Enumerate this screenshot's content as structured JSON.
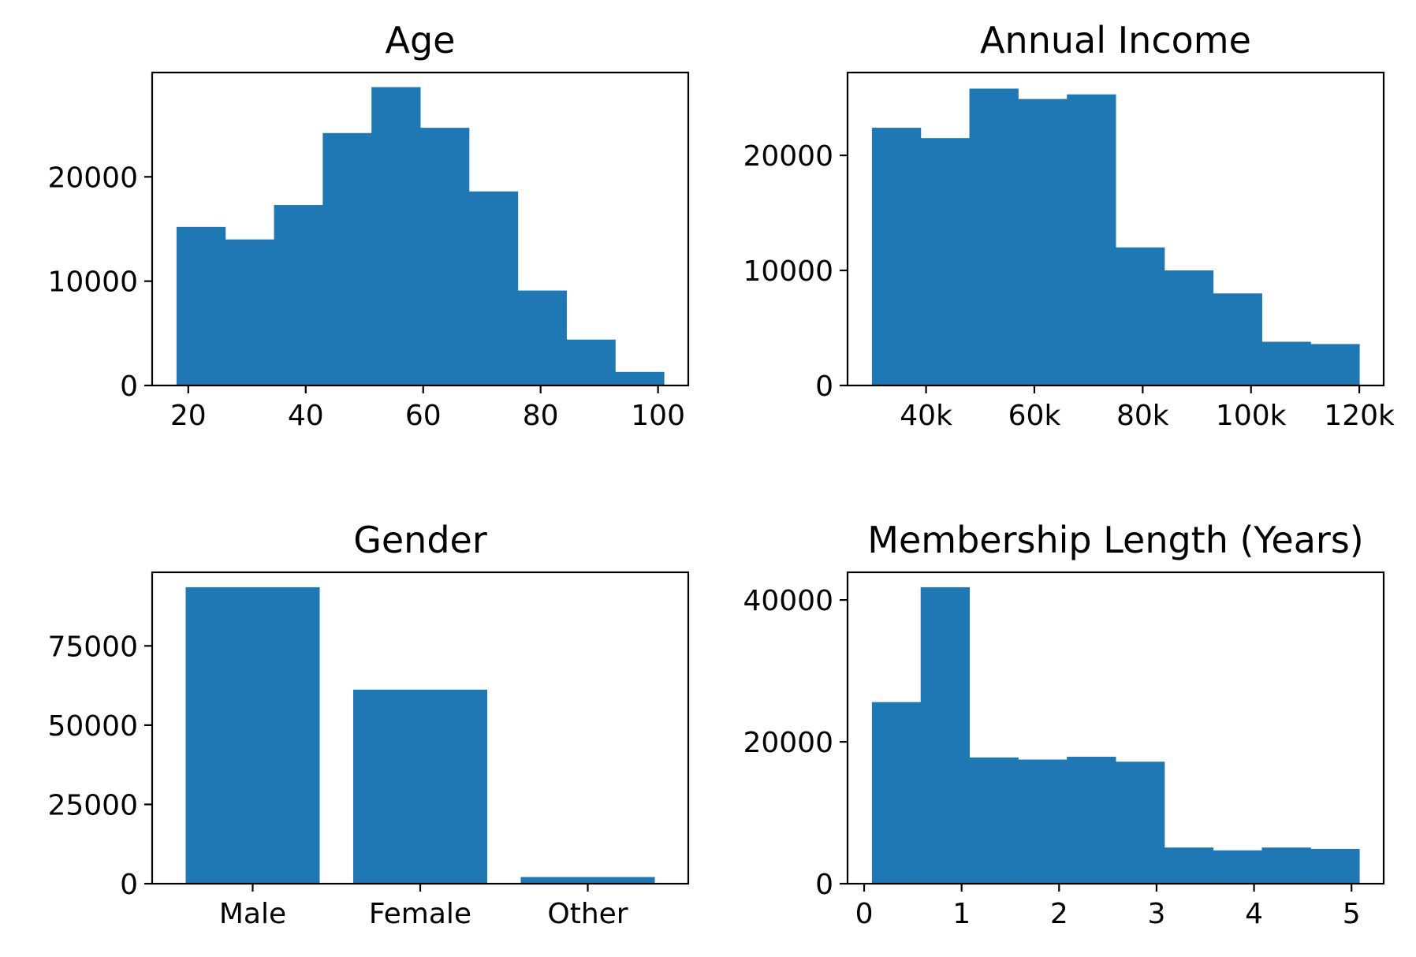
{
  "chart_data": [
    {
      "type": "bar",
      "title": "Age",
      "bar_color": "#1f77b4",
      "bins": [
        {
          "x0": 18.0,
          "x1": 26.3,
          "value": 15200
        },
        {
          "x0": 26.3,
          "x1": 34.6,
          "value": 14000
        },
        {
          "x0": 34.6,
          "x1": 42.9,
          "value": 17300
        },
        {
          "x0": 42.9,
          "x1": 51.2,
          "value": 24200
        },
        {
          "x0": 51.2,
          "x1": 59.5,
          "value": 28600
        },
        {
          "x0": 59.5,
          "x1": 67.8,
          "value": 24700
        },
        {
          "x0": 67.8,
          "x1": 76.1,
          "value": 18600
        },
        {
          "x0": 76.1,
          "x1": 84.4,
          "value": 9100
        },
        {
          "x0": 84.4,
          "x1": 92.7,
          "value": 4400
        },
        {
          "x0": 92.7,
          "x1": 101.0,
          "value": 1300
        }
      ],
      "xlim": [
        13.85,
        105.15
      ],
      "ylim": [
        0,
        30000
      ],
      "xticks": [
        {
          "v": 20,
          "label": "20"
        },
        {
          "v": 40,
          "label": "40"
        },
        {
          "v": 60,
          "label": "60"
        },
        {
          "v": 80,
          "label": "80"
        },
        {
          "v": 100,
          "label": "100"
        }
      ],
      "yticks": [
        {
          "v": 0,
          "label": "0"
        },
        {
          "v": 10000,
          "label": "10000"
        },
        {
          "v": 20000,
          "label": "20000"
        }
      ]
    },
    {
      "type": "bar",
      "title": "Annual Income",
      "bar_color": "#1f77b4",
      "bins": [
        {
          "x0": 30000,
          "x1": 39000,
          "value": 22400
        },
        {
          "x0": 39000,
          "x1": 48000,
          "value": 21500
        },
        {
          "x0": 48000,
          "x1": 57000,
          "value": 25800
        },
        {
          "x0": 57000,
          "x1": 66000,
          "value": 24900
        },
        {
          "x0": 66000,
          "x1": 75000,
          "value": 25300
        },
        {
          "x0": 75000,
          "x1": 84000,
          "value": 12000
        },
        {
          "x0": 84000,
          "x1": 93000,
          "value": 10000
        },
        {
          "x0": 93000,
          "x1": 102000,
          "value": 8000
        },
        {
          "x0": 102000,
          "x1": 111000,
          "value": 3800
        },
        {
          "x0": 111000,
          "x1": 120000,
          "value": 3600
        }
      ],
      "xlim": [
        25500,
        124500
      ],
      "ylim": [
        0,
        27200
      ],
      "xticks": [
        {
          "v": 40000,
          "label": "40k"
        },
        {
          "v": 60000,
          "label": "60k"
        },
        {
          "v": 80000,
          "label": "80k"
        },
        {
          "v": 100000,
          "label": "100k"
        },
        {
          "v": 120000,
          "label": "120k"
        }
      ],
      "yticks": [
        {
          "v": 0,
          "label": "0"
        },
        {
          "v": 10000,
          "label": "10000"
        },
        {
          "v": 20000,
          "label": "20000"
        }
      ]
    },
    {
      "type": "bar",
      "title": "Gender",
      "bar_color": "#1f77b4",
      "categories": [
        "Male",
        "Female",
        "Other"
      ],
      "values": [
        93500,
        61200,
        2100
      ],
      "ylim": [
        0,
        98200
      ],
      "yticks": [
        {
          "v": 0,
          "label": "0"
        },
        {
          "v": 25000,
          "label": "25000"
        },
        {
          "v": 50000,
          "label": "50000"
        },
        {
          "v": 75000,
          "label": "75000"
        }
      ]
    },
    {
      "type": "bar",
      "title": "Membership Length (Years)",
      "bar_color": "#1f77b4",
      "bins": [
        {
          "x0": 0.08,
          "x1": 0.58,
          "value": 25600
        },
        {
          "x0": 0.58,
          "x1": 1.08,
          "value": 41800
        },
        {
          "x0": 1.08,
          "x1": 1.58,
          "value": 17800
        },
        {
          "x0": 1.58,
          "x1": 2.08,
          "value": 17500
        },
        {
          "x0": 2.08,
          "x1": 2.58,
          "value": 17900
        },
        {
          "x0": 2.58,
          "x1": 3.08,
          "value": 17200
        },
        {
          "x0": 3.08,
          "x1": 3.58,
          "value": 5100
        },
        {
          "x0": 3.58,
          "x1": 4.08,
          "value": 4700
        },
        {
          "x0": 4.08,
          "x1": 4.58,
          "value": 5100
        },
        {
          "x0": 4.58,
          "x1": 5.08,
          "value": 4900
        }
      ],
      "xlim": [
        -0.17,
        5.33
      ],
      "ylim": [
        0,
        43900
      ],
      "xticks": [
        {
          "v": 0,
          "label": "0"
        },
        {
          "v": 1,
          "label": "1"
        },
        {
          "v": 2,
          "label": "2"
        },
        {
          "v": 3,
          "label": "3"
        },
        {
          "v": 4,
          "label": "4"
        },
        {
          "v": 5,
          "label": "5"
        }
      ],
      "yticks": [
        {
          "v": 0,
          "label": "0"
        },
        {
          "v": 20000,
          "label": "20000"
        },
        {
          "v": 40000,
          "label": "40000"
        }
      ]
    }
  ]
}
